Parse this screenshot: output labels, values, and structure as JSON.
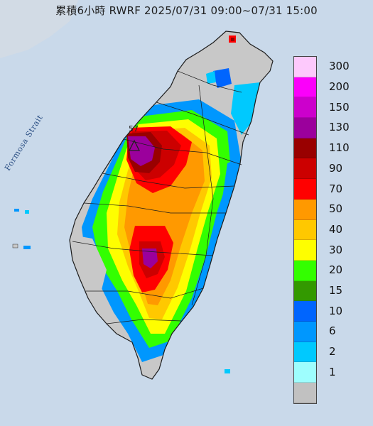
{
  "title": "累積6小時 RWRF 2025/07/31 09:00~07/31 15:00",
  "strait_label": "Formosa Strait",
  "marker_label": "57",
  "legend": [
    {
      "label": "300",
      "color": "#fdc9fc"
    },
    {
      "label": "200",
      "color": "#fb00fa"
    },
    {
      "label": "150",
      "color": "#cc00cc"
    },
    {
      "label": "130",
      "color": "#9b009c"
    },
    {
      "label": "110",
      "color": "#990000"
    },
    {
      "label": "90",
      "color": "#cc0000"
    },
    {
      "label": "70",
      "color": "#ff0000"
    },
    {
      "label": "50",
      "color": "#ff9900"
    },
    {
      "label": "40",
      "color": "#ffc800"
    },
    {
      "label": "30",
      "color": "#fefe00"
    },
    {
      "label": "20",
      "color": "#33ff00"
    },
    {
      "label": "15",
      "color": "#339900"
    },
    {
      "label": "10",
      "color": "#0065fe"
    },
    {
      "label": "6",
      "color": "#0097fe"
    },
    {
      "label": "2",
      "color": "#00c9fe"
    },
    {
      "label": "1",
      "color": "#9efefe"
    },
    {
      "label": "",
      "color": "#c1c1c1"
    }
  ],
  "colors": {
    "sea": "#c9d9ea",
    "land": "#c8c8c8",
    "border": "#222222"
  }
}
